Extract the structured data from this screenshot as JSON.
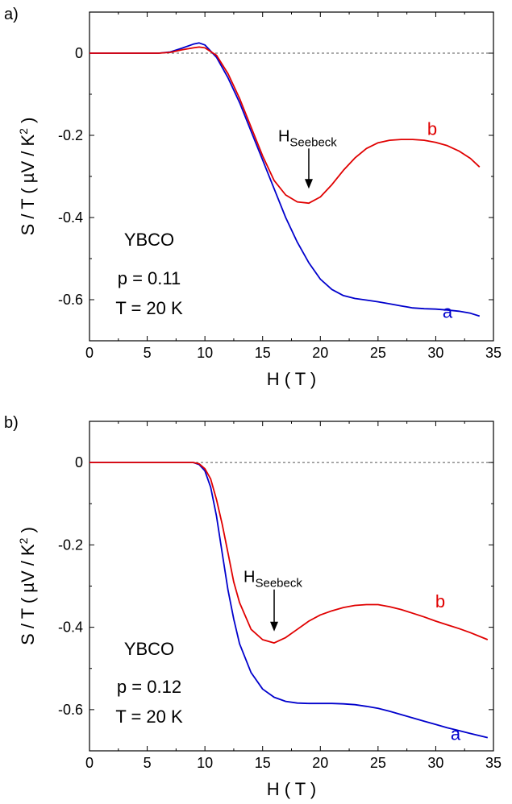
{
  "chart_data": [
    {
      "type": "line",
      "panel_label": "a)",
      "xlabel": "H ( T )",
      "ylabel": "S / T ( µV / K",
      "ylabel_sup": "2",
      "ylabel_end": " )",
      "xlim": [
        0,
        35
      ],
      "ylim": [
        -0.7,
        0.1
      ],
      "xticks": [
        0,
        5,
        10,
        15,
        20,
        25,
        30,
        35
      ],
      "yticks": [
        0,
        -0.2,
        -0.4,
        -0.6
      ],
      "ytick_labels": [
        "0",
        "-0.2",
        "-0.4",
        "-0.6"
      ],
      "zero_line": "dashed",
      "annotations": {
        "material": "YBCO",
        "doping": "p = 0.11",
        "temperature": "T = 20 K"
      },
      "arrow": {
        "label_main": "H",
        "label_sub": "Seebeck",
        "x": 19,
        "tip_y": -0.33
      },
      "series": [
        {
          "name": "a",
          "color": "#0000cc",
          "x": [
            0,
            6,
            7,
            8,
            9,
            9.5,
            10,
            11,
            12,
            13,
            14,
            15,
            16,
            17,
            18,
            19,
            20,
            21,
            22,
            23,
            24,
            25,
            26,
            27,
            28,
            29,
            30,
            31,
            32,
            33,
            33.8
          ],
          "y": [
            0,
            0,
            0.003,
            0.012,
            0.022,
            0.025,
            0.02,
            -0.01,
            -0.06,
            -0.12,
            -0.19,
            -0.26,
            -0.33,
            -0.4,
            -0.46,
            -0.51,
            -0.55,
            -0.575,
            -0.59,
            -0.597,
            -0.601,
            -0.605,
            -0.61,
            -0.615,
            -0.62,
            -0.622,
            -0.623,
            -0.625,
            -0.628,
            -0.633,
            -0.64
          ]
        },
        {
          "name": "b",
          "color": "#e00000",
          "x": [
            0,
            6,
            7,
            8,
            9,
            9.5,
            10,
            11,
            12,
            13,
            14,
            15,
            16,
            17,
            18,
            19,
            20,
            21,
            22,
            23,
            24,
            25,
            26,
            27,
            28,
            29,
            30,
            31,
            32,
            33,
            33.8
          ],
          "y": [
            0,
            0,
            0.002,
            0.008,
            0.013,
            0.015,
            0.013,
            -0.005,
            -0.05,
            -0.11,
            -0.18,
            -0.25,
            -0.31,
            -0.345,
            -0.362,
            -0.365,
            -0.35,
            -0.32,
            -0.285,
            -0.255,
            -0.232,
            -0.218,
            -0.212,
            -0.21,
            -0.21,
            -0.212,
            -0.217,
            -0.225,
            -0.238,
            -0.256,
            -0.277
          ]
        }
      ]
    },
    {
      "type": "line",
      "panel_label": "b)",
      "xlabel": "H ( T )",
      "ylabel": "S / T ( µV / K",
      "ylabel_sup": "2",
      "ylabel_end": " )",
      "xlim": [
        0,
        35
      ],
      "ylim": [
        -0.7,
        0.1
      ],
      "xticks": [
        0,
        5,
        10,
        15,
        20,
        25,
        30,
        35
      ],
      "yticks": [
        0,
        -0.2,
        -0.4,
        -0.6
      ],
      "ytick_labels": [
        "0",
        "-0.2",
        "-0.4",
        "-0.6"
      ],
      "zero_line": "dashed",
      "annotations": {
        "material": "YBCO",
        "doping": "p = 0.12",
        "temperature": "T = 20 K"
      },
      "arrow": {
        "label_main": "H",
        "label_sub": "Seebeck",
        "x": 16,
        "tip_y": -0.41
      },
      "series": [
        {
          "name": "a",
          "color": "#0000cc",
          "x": [
            0,
            9,
            9.5,
            10,
            10.5,
            11,
            11.5,
            12,
            12.5,
            13,
            14,
            15,
            16,
            17,
            18,
            19,
            20,
            21,
            22,
            23,
            24,
            25,
            26,
            27,
            28,
            29,
            30,
            31,
            32,
            33,
            34.5
          ],
          "y": [
            0,
            0,
            -0.005,
            -0.02,
            -0.06,
            -0.13,
            -0.22,
            -0.31,
            -0.38,
            -0.44,
            -0.51,
            -0.55,
            -0.57,
            -0.58,
            -0.584,
            -0.585,
            -0.585,
            -0.585,
            -0.586,
            -0.588,
            -0.592,
            -0.597,
            -0.604,
            -0.612,
            -0.62,
            -0.628,
            -0.636,
            -0.644,
            -0.651,
            -0.658,
            -0.668
          ]
        },
        {
          "name": "b",
          "color": "#e00000",
          "x": [
            0,
            9,
            9.5,
            10,
            10.5,
            11,
            11.5,
            12,
            12.5,
            13,
            14,
            15,
            16,
            17,
            18,
            19,
            20,
            21,
            22,
            23,
            24,
            25,
            26,
            27,
            28,
            29,
            30,
            31,
            32,
            33,
            34.5
          ],
          "y": [
            0,
            0,
            -0.003,
            -0.015,
            -0.04,
            -0.09,
            -0.15,
            -0.22,
            -0.29,
            -0.34,
            -0.405,
            -0.43,
            -0.438,
            -0.425,
            -0.405,
            -0.385,
            -0.37,
            -0.36,
            -0.352,
            -0.347,
            -0.345,
            -0.345,
            -0.35,
            -0.357,
            -0.366,
            -0.375,
            -0.385,
            -0.394,
            -0.403,
            -0.413,
            -0.43
          ]
        }
      ]
    }
  ]
}
